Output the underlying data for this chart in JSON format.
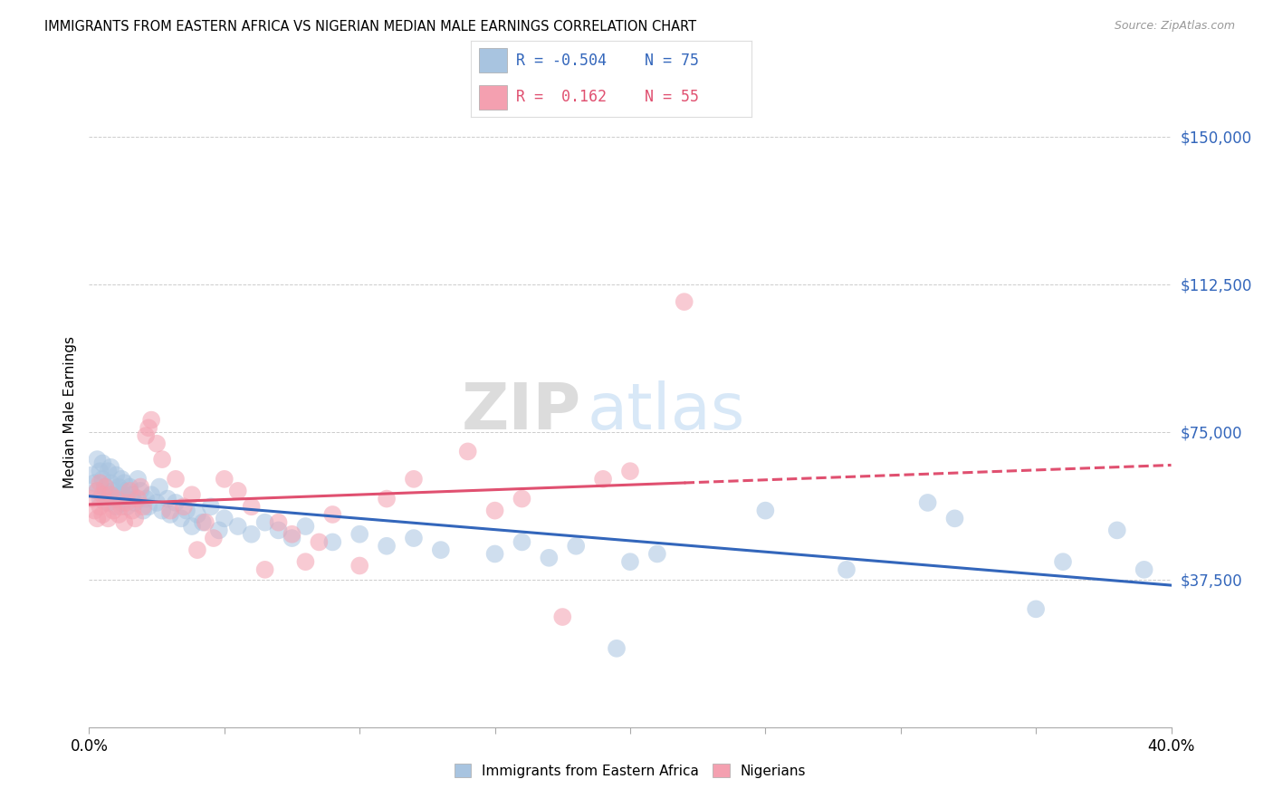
{
  "title": "IMMIGRANTS FROM EASTERN AFRICA VS NIGERIAN MEDIAN MALE EARNINGS CORRELATION CHART",
  "source": "Source: ZipAtlas.com",
  "ylabel": "Median Male Earnings",
  "xlim": [
    0.0,
    0.4
  ],
  "ylim": [
    0,
    160000
  ],
  "legend_labels": [
    "Immigrants from Eastern Africa",
    "Nigerians"
  ],
  "legend_r_blue": "-0.504",
  "legend_n_blue": "75",
  "legend_r_pink": "0.162",
  "legend_n_pink": "55",
  "blue_fill": "#A8C4E0",
  "pink_fill": "#F4A0B0",
  "blue_line": "#3366BB",
  "pink_line": "#E05070",
  "ytick_vals": [
    37500,
    75000,
    112500,
    150000
  ],
  "ytick_labels": [
    "$37,500",
    "$75,000",
    "$112,500",
    "$150,000"
  ],
  "blue_x": [
    0.001,
    0.002,
    0.003,
    0.003,
    0.004,
    0.004,
    0.005,
    0.005,
    0.006,
    0.006,
    0.007,
    0.007,
    0.008,
    0.008,
    0.009,
    0.009,
    0.01,
    0.01,
    0.011,
    0.011,
    0.012,
    0.012,
    0.013,
    0.013,
    0.014,
    0.014,
    0.015,
    0.016,
    0.017,
    0.018,
    0.019,
    0.02,
    0.021,
    0.022,
    0.023,
    0.025,
    0.026,
    0.027,
    0.029,
    0.03,
    0.032,
    0.034,
    0.036,
    0.038,
    0.04,
    0.042,
    0.045,
    0.048,
    0.05,
    0.055,
    0.06,
    0.065,
    0.07,
    0.075,
    0.08,
    0.09,
    0.1,
    0.11,
    0.12,
    0.13,
    0.15,
    0.16,
    0.17,
    0.18,
    0.2,
    0.21,
    0.25,
    0.28,
    0.31,
    0.32,
    0.35,
    0.36,
    0.38,
    0.39,
    0.195
  ],
  "blue_y": [
    64000,
    62000,
    68000,
    60000,
    65000,
    58000,
    63000,
    67000,
    61000,
    59000,
    65000,
    57000,
    62000,
    66000,
    60000,
    58000,
    64000,
    56000,
    61000,
    59000,
    63000,
    57000,
    60000,
    62000,
    58000,
    56000,
    61000,
    59000,
    57000,
    63000,
    60000,
    55000,
    58000,
    56000,
    59000,
    57000,
    61000,
    55000,
    58000,
    54000,
    57000,
    53000,
    55000,
    51000,
    54000,
    52000,
    56000,
    50000,
    53000,
    51000,
    49000,
    52000,
    50000,
    48000,
    51000,
    47000,
    49000,
    46000,
    48000,
    45000,
    44000,
    47000,
    43000,
    46000,
    42000,
    44000,
    55000,
    40000,
    57000,
    53000,
    30000,
    42000,
    50000,
    40000,
    20000
  ],
  "pink_x": [
    0.001,
    0.002,
    0.003,
    0.003,
    0.004,
    0.004,
    0.005,
    0.005,
    0.006,
    0.006,
    0.007,
    0.008,
    0.009,
    0.01,
    0.011,
    0.012,
    0.013,
    0.014,
    0.015,
    0.016,
    0.017,
    0.018,
    0.019,
    0.02,
    0.021,
    0.022,
    0.023,
    0.025,
    0.027,
    0.03,
    0.032,
    0.035,
    0.038,
    0.04,
    0.043,
    0.046,
    0.05,
    0.055,
    0.06,
    0.065,
    0.07,
    0.075,
    0.08,
    0.085,
    0.09,
    0.1,
    0.11,
    0.12,
    0.14,
    0.15,
    0.16,
    0.175,
    0.19,
    0.2,
    0.22
  ],
  "pink_y": [
    58000,
    55000,
    60000,
    53000,
    62000,
    56000,
    59000,
    54000,
    61000,
    57000,
    53000,
    59000,
    55000,
    58000,
    54000,
    56000,
    52000,
    57000,
    60000,
    55000,
    53000,
    58000,
    61000,
    56000,
    74000,
    76000,
    78000,
    72000,
    68000,
    55000,
    63000,
    56000,
    59000,
    45000,
    52000,
    48000,
    63000,
    60000,
    56000,
    40000,
    52000,
    49000,
    42000,
    47000,
    54000,
    41000,
    58000,
    63000,
    70000,
    55000,
    58000,
    28000,
    63000,
    65000,
    108000
  ]
}
